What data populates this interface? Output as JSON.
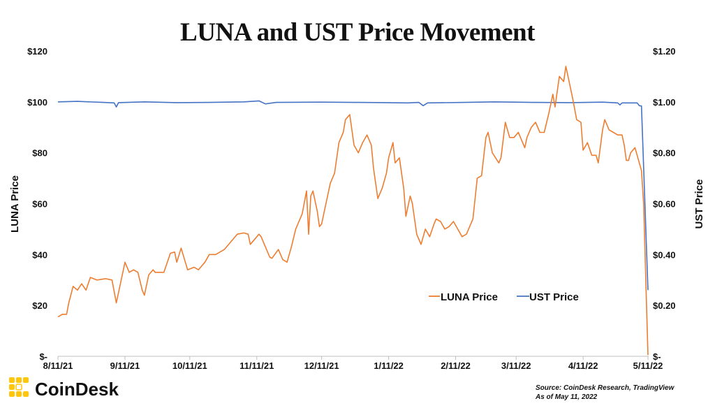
{
  "chart_data": {
    "type": "line",
    "title": "LUNA and UST Price Movement",
    "ylabel_left": "LUNA Price",
    "ylabel_right": "UST Price",
    "ylim_left": [
      0,
      120
    ],
    "ylim_right": [
      0,
      1.2
    ],
    "xlim": [
      "2021-08-11",
      "2022-05-11"
    ],
    "grid": false,
    "legend_position": "bottom-right",
    "y_ticks_left": [
      "$-",
      "$20",
      "$40",
      "$60",
      "$80",
      "$100",
      "$120"
    ],
    "y_ticks_right": [
      "$-",
      "$0.20",
      "$0.40",
      "$0.60",
      "$0.80",
      "$1.00",
      "$1.20"
    ],
    "x_ticks": [
      "8/11/21",
      "9/11/21",
      "10/11/21",
      "11/11/21",
      "12/11/21",
      "1/11/22",
      "2/11/22",
      "3/11/22",
      "4/11/22",
      "5/11/22"
    ],
    "x_tick_dates": [
      "2021-08-11",
      "2021-09-11",
      "2021-10-11",
      "2021-11-11",
      "2021-12-11",
      "2022-01-11",
      "2022-02-11",
      "2022-03-11",
      "2022-04-11",
      "2022-05-11"
    ],
    "series": [
      {
        "name": "LUNA Price",
        "axis": "left",
        "color": "#ED7D31",
        "points": [
          [
            "2021-08-11",
            15.5
          ],
          [
            "2021-08-13",
            16.5
          ],
          [
            "2021-08-15",
            16.5
          ],
          [
            "2021-08-16",
            21
          ],
          [
            "2021-08-18",
            27.5
          ],
          [
            "2021-08-20",
            26
          ],
          [
            "2021-08-22",
            28.5
          ],
          [
            "2021-08-24",
            26
          ],
          [
            "2021-08-26",
            31
          ],
          [
            "2021-08-29",
            30
          ],
          [
            "2021-09-02",
            30.5
          ],
          [
            "2021-09-05",
            30
          ],
          [
            "2021-09-07",
            21
          ],
          [
            "2021-09-09",
            29
          ],
          [
            "2021-09-11",
            37
          ],
          [
            "2021-09-13",
            33
          ],
          [
            "2021-09-15",
            34
          ],
          [
            "2021-09-17",
            33
          ],
          [
            "2021-09-19",
            26
          ],
          [
            "2021-09-20",
            24
          ],
          [
            "2021-09-22",
            32
          ],
          [
            "2021-09-24",
            34
          ],
          [
            "2021-09-25",
            33
          ],
          [
            "2021-09-29",
            33
          ],
          [
            "2021-10-02",
            40.5
          ],
          [
            "2021-10-04",
            41
          ],
          [
            "2021-10-05",
            37
          ],
          [
            "2021-10-07",
            42.5
          ],
          [
            "2021-10-10",
            34
          ],
          [
            "2021-10-13",
            35
          ],
          [
            "2021-10-15",
            34
          ],
          [
            "2021-10-18",
            37
          ],
          [
            "2021-10-20",
            40
          ],
          [
            "2021-10-23",
            40
          ],
          [
            "2021-10-25",
            41
          ],
          [
            "2021-10-27",
            42
          ],
          [
            "2021-10-30",
            45
          ],
          [
            "2021-11-02",
            48
          ],
          [
            "2021-11-05",
            48.5
          ],
          [
            "2021-11-07",
            48
          ],
          [
            "2021-11-08",
            44
          ],
          [
            "2021-11-12",
            48
          ],
          [
            "2021-11-13",
            47
          ],
          [
            "2021-11-17",
            39
          ],
          [
            "2021-11-18",
            38.5
          ],
          [
            "2021-11-21",
            42
          ],
          [
            "2021-11-23",
            38
          ],
          [
            "2021-11-25",
            37
          ],
          [
            "2021-11-27",
            43
          ],
          [
            "2021-11-29",
            50
          ],
          [
            "2021-12-02",
            56
          ],
          [
            "2021-12-04",
            65
          ],
          [
            "2021-12-05",
            48
          ],
          [
            "2021-12-06",
            63
          ],
          [
            "2021-12-07",
            65
          ],
          [
            "2021-12-09",
            57
          ],
          [
            "2021-12-10",
            51
          ],
          [
            "2021-12-11",
            52
          ],
          [
            "2021-12-13",
            60
          ],
          [
            "2021-12-15",
            68
          ],
          [
            "2021-12-17",
            72
          ],
          [
            "2021-12-19",
            84
          ],
          [
            "2021-12-21",
            88
          ],
          [
            "2021-12-22",
            93
          ],
          [
            "2021-12-24",
            95
          ],
          [
            "2021-12-26",
            83
          ],
          [
            "2021-12-28",
            80
          ],
          [
            "2021-12-30",
            84
          ],
          [
            "2022-01-01",
            87
          ],
          [
            "2022-01-03",
            83
          ],
          [
            "2022-01-04",
            74
          ],
          [
            "2022-01-06",
            62
          ],
          [
            "2022-01-08",
            66
          ],
          [
            "2022-01-10",
            72
          ],
          [
            "2022-01-11",
            78
          ],
          [
            "2022-01-13",
            84
          ],
          [
            "2022-01-14",
            76
          ],
          [
            "2022-01-16",
            78
          ],
          [
            "2022-01-18",
            66
          ],
          [
            "2022-01-19",
            55
          ],
          [
            "2022-01-21",
            63
          ],
          [
            "2022-01-22",
            60
          ],
          [
            "2022-01-24",
            48
          ],
          [
            "2022-01-25",
            46
          ],
          [
            "2022-01-26",
            44
          ],
          [
            "2022-01-28",
            50
          ],
          [
            "2022-01-30",
            47
          ],
          [
            "2022-02-01",
            52
          ],
          [
            "2022-02-02",
            54
          ],
          [
            "2022-02-04",
            53
          ],
          [
            "2022-02-06",
            50
          ],
          [
            "2022-02-08",
            51
          ],
          [
            "2022-02-10",
            53
          ],
          [
            "2022-02-12",
            50
          ],
          [
            "2022-02-14",
            47
          ],
          [
            "2022-02-16",
            48
          ],
          [
            "2022-02-17",
            50
          ],
          [
            "2022-02-19",
            54
          ],
          [
            "2022-02-21",
            70
          ],
          [
            "2022-02-23",
            71
          ],
          [
            "2022-02-25",
            86
          ],
          [
            "2022-02-26",
            88
          ],
          [
            "2022-02-28",
            80
          ],
          [
            "2022-03-03",
            76
          ],
          [
            "2022-03-04",
            78
          ],
          [
            "2022-03-06",
            92
          ],
          [
            "2022-03-08",
            86
          ],
          [
            "2022-03-10",
            86
          ],
          [
            "2022-03-12",
            88
          ],
          [
            "2022-03-13",
            86
          ],
          [
            "2022-03-15",
            82
          ],
          [
            "2022-03-16",
            86
          ],
          [
            "2022-03-18",
            90
          ],
          [
            "2022-03-20",
            92
          ],
          [
            "2022-03-22",
            88
          ],
          [
            "2022-03-24",
            88
          ],
          [
            "2022-03-26",
            95
          ],
          [
            "2022-03-28",
            103
          ],
          [
            "2022-03-29",
            98
          ],
          [
            "2022-03-31",
            110
          ],
          [
            "2022-04-02",
            108
          ],
          [
            "2022-04-03",
            114
          ],
          [
            "2022-04-06",
            102
          ],
          [
            "2022-04-08",
            93
          ],
          [
            "2022-04-10",
            92
          ],
          [
            "2022-04-11",
            81
          ],
          [
            "2022-04-13",
            84
          ],
          [
            "2022-04-15",
            79
          ],
          [
            "2022-04-17",
            79
          ],
          [
            "2022-04-18",
            76
          ],
          [
            "2022-04-20",
            89
          ],
          [
            "2022-04-21",
            93
          ],
          [
            "2022-04-23",
            89
          ],
          [
            "2022-04-25",
            88
          ],
          [
            "2022-04-27",
            87
          ],
          [
            "2022-04-29",
            87
          ],
          [
            "2022-04-30",
            83
          ],
          [
            "2022-05-01",
            77
          ],
          [
            "2022-05-02",
            77
          ],
          [
            "2022-05-03",
            80
          ],
          [
            "2022-05-05",
            82
          ],
          [
            "2022-05-06",
            79
          ],
          [
            "2022-05-08",
            73
          ],
          [
            "2022-05-09",
            60
          ],
          [
            "2022-05-10",
            30
          ],
          [
            "2022-05-11",
            0.5
          ]
        ]
      },
      {
        "name": "UST Price",
        "axis": "right",
        "color": "#4472C4",
        "points": [
          [
            "2021-08-11",
            1.0
          ],
          [
            "2021-08-20",
            1.002
          ],
          [
            "2021-09-01",
            0.998
          ],
          [
            "2021-09-06",
            0.996
          ],
          [
            "2021-09-07",
            0.98
          ],
          [
            "2021-09-08",
            0.997
          ],
          [
            "2021-09-20",
            1.0
          ],
          [
            "2021-10-05",
            0.997
          ],
          [
            "2021-10-20",
            0.998
          ],
          [
            "2021-11-05",
            1.0
          ],
          [
            "2021-11-12",
            1.004
          ],
          [
            "2021-11-15",
            0.992
          ],
          [
            "2021-11-20",
            0.998
          ],
          [
            "2021-12-10",
            0.999
          ],
          [
            "2021-12-28",
            0.998
          ],
          [
            "2022-01-10",
            0.997
          ],
          [
            "2022-01-20",
            0.996
          ],
          [
            "2022-01-25",
            0.998
          ],
          [
            "2022-01-27",
            0.985
          ],
          [
            "2022-01-29",
            0.996
          ],
          [
            "2022-02-15",
            0.998
          ],
          [
            "2022-03-01",
            1.0
          ],
          [
            "2022-03-20",
            0.998
          ],
          [
            "2022-04-05",
            0.997
          ],
          [
            "2022-04-20",
            0.999
          ],
          [
            "2022-04-27",
            0.996
          ],
          [
            "2022-04-28",
            0.988
          ],
          [
            "2022-04-29",
            0.996
          ],
          [
            "2022-05-06",
            0.996
          ],
          [
            "2022-05-07",
            0.985
          ],
          [
            "2022-05-08",
            0.984
          ],
          [
            "2022-05-11",
            0.26
          ]
        ]
      }
    ]
  },
  "footer": {
    "logo_text": "CoinDesk",
    "source": "Source: CoinDesk Research, TradingView",
    "as_of": "As of May 11, 2022",
    "brand_color": "#FFC60B"
  }
}
